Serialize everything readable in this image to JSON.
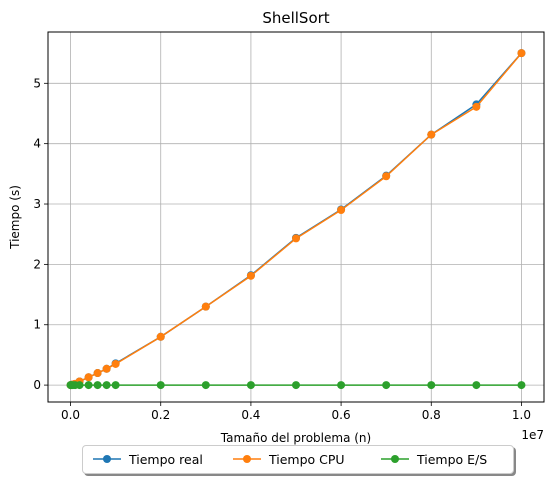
{
  "chart_data": {
    "type": "line",
    "title": "ShellSort",
    "xlabel": "Tamaño del problema (n)",
    "ylabel": "Tiempo (s)",
    "x_offset_label": "1e7",
    "xlim": [
      -500000,
      10500000
    ],
    "ylim": [
      -0.28,
      5.85
    ],
    "xticks": [
      0,
      2000000,
      4000000,
      6000000,
      8000000,
      10000000
    ],
    "xtick_labels": [
      "0.0",
      "0.2",
      "0.4",
      "0.6",
      "0.8",
      "1.0"
    ],
    "yticks": [
      0,
      1,
      2,
      3,
      4,
      5
    ],
    "ytick_labels": [
      "0",
      "1",
      "2",
      "3",
      "4",
      "5"
    ],
    "grid": true,
    "legend_position": "bottom-center-outside",
    "x": [
      1000,
      10000,
      50000,
      100000,
      200000,
      400000,
      600000,
      800000,
      1000000,
      2000000,
      3000000,
      4000000,
      5000000,
      6000000,
      7000000,
      8000000,
      9000000,
      10000000
    ],
    "series": [
      {
        "name": "Tiempo real",
        "color": "#1f77b4",
        "values": [
          0.0,
          0.0,
          0.01,
          0.02,
          0.06,
          0.13,
          0.2,
          0.27,
          0.36,
          0.8,
          1.3,
          1.82,
          2.44,
          2.91,
          3.47,
          4.15,
          4.65,
          5.5
        ]
      },
      {
        "name": "Tiempo CPU",
        "color": "#ff7f0e",
        "values": [
          0.0,
          0.0,
          0.01,
          0.02,
          0.06,
          0.13,
          0.2,
          0.27,
          0.35,
          0.8,
          1.3,
          1.81,
          2.43,
          2.9,
          3.46,
          4.15,
          4.61,
          5.5
        ]
      },
      {
        "name": "Tiempo E/S",
        "color": "#2ca02c",
        "values": [
          0.0,
          0.0,
          0.0,
          0.0,
          0.0,
          0.0,
          0.0,
          0.0,
          0.0,
          0.0,
          0.0,
          0.0,
          0.0,
          0.0,
          0.0,
          0.0,
          0.0,
          0.0
        ]
      }
    ]
  }
}
